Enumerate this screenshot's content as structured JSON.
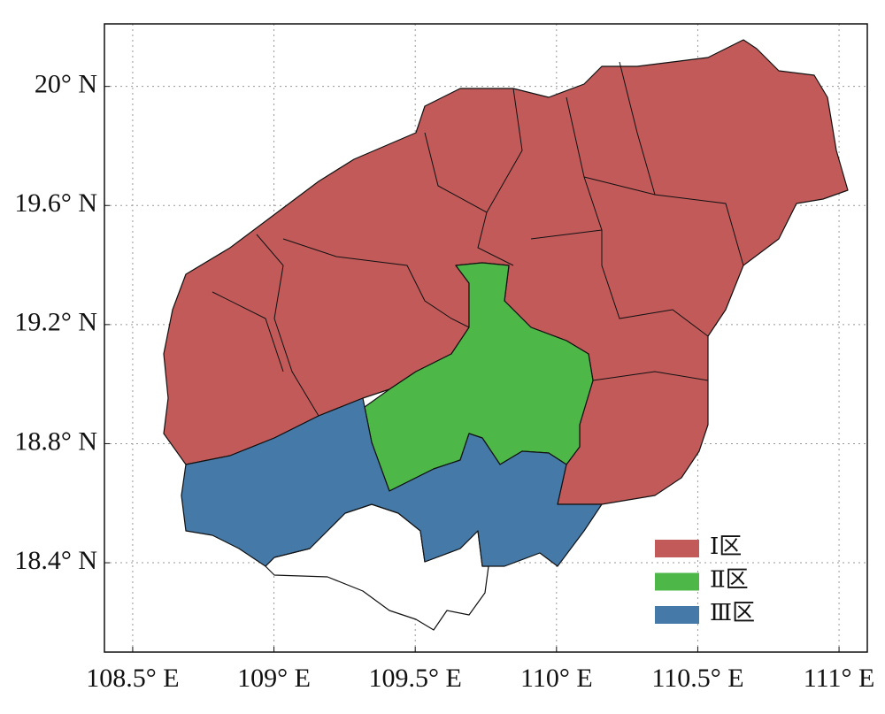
{
  "map": {
    "xlim": [
      108.4,
      111.1
    ],
    "ylim": [
      18.1,
      20.21
    ],
    "xticks": [
      {
        "value": 108.5,
        "label": "108.5° E"
      },
      {
        "value": 109,
        "label": "109° E"
      },
      {
        "value": 109.5,
        "label": "109.5° E"
      },
      {
        "value": 110,
        "label": "110° E"
      },
      {
        "value": 110.5,
        "label": "110.5° E"
      },
      {
        "value": 111,
        "label": "111° E"
      }
    ],
    "yticks": [
      {
        "value": 18.4,
        "label": "18.4° N"
      },
      {
        "value": 18.8,
        "label": "18.8° N"
      },
      {
        "value": 19.2,
        "label": "19.2° N"
      },
      {
        "value": 19.6,
        "label": "19.6° N"
      },
      {
        "value": 20,
        "label": "20° N"
      }
    ],
    "grid": true,
    "legend": [
      {
        "label": "Ⅰ区",
        "color": "#c25a5a"
      },
      {
        "label": "Ⅱ区",
        "color": "#4db848"
      },
      {
        "label": "Ⅲ区",
        "color": "#4479a8"
      }
    ]
  }
}
